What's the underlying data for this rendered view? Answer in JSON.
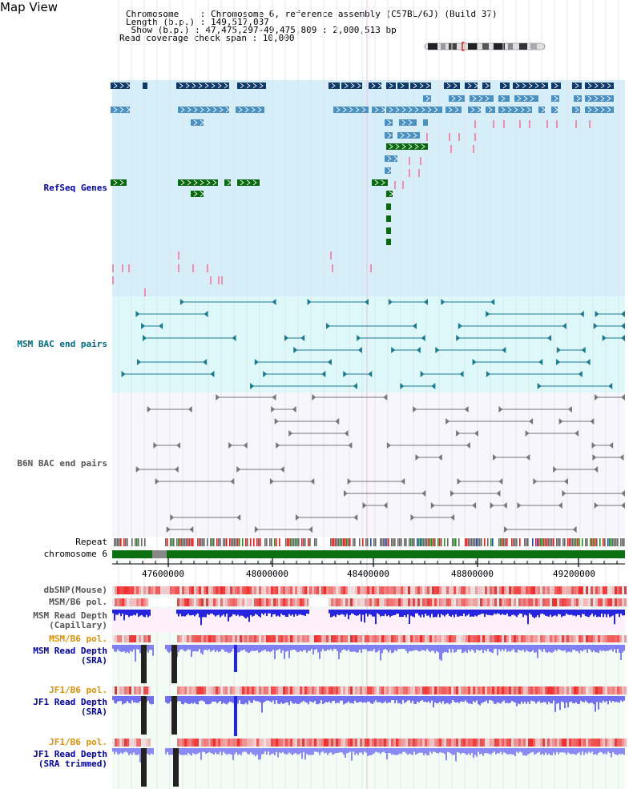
{
  "header": {
    "view_title": "Map View",
    "chromosome_line": "Chromosome    : Chromosome 6, reference assembly (C57BL/6J) (Build 37)",
    "length_line": "Length (b.p.) : 149,517,037",
    "show_line": " Show (b.p.) : 47,475,297-49,475,809 : 2,000,513 bp",
    "coverage_line": "Read coverage check span : 10,000"
  },
  "tracks": {
    "refseq": "RefSeq Genes",
    "msm_bac": "MSM BAC end pairs",
    "b6n_bac": "B6N BAC end pairs",
    "repeat": "Repeat",
    "chromosome": "chromosome 6",
    "dbsnp": "dbSNP(Mouse)",
    "msm_pol_1": "MSM/B6 pol.",
    "msm_depth_cap_1": "MSM Read Depth",
    "msm_depth_cap_2": "(Capillary)",
    "msm_pol_2": "MSM/B6 pol.",
    "msm_depth_sra_1": "MSM Read Depth",
    "msm_depth_sra_2": "(SRA)",
    "jf1_pol_1": "JF1/B6 pol.",
    "jf1_depth_sra_1": "JF1 Read Depth",
    "jf1_depth_sra_2": "(SRA)",
    "jf1_pol_2": "JF1/B6 pol.",
    "jf1_depth_trim_1": "JF1 Read Depth",
    "jf1_depth_trim_2": "(SRA trimmed)"
  },
  "axis": {
    "ticks": [
      "47600000",
      "48000000",
      "48400000",
      "48800000",
      "49200000"
    ]
  },
  "colors": {
    "refseq_bg": "#d6eef8",
    "msm_bg": "#ddf8f8",
    "b6n_bg": "#f6f6fc",
    "gene_dark": "#0f3a6a",
    "gene_light": "#4a90c0",
    "gene_green": "#0a6a10",
    "bac_teal": "#1a7a90",
    "bac_gray": "#777777",
    "chrom_green": "#0a7010",
    "depth_blue": "#2020e0",
    "depth_light": "#7070f0"
  }
}
